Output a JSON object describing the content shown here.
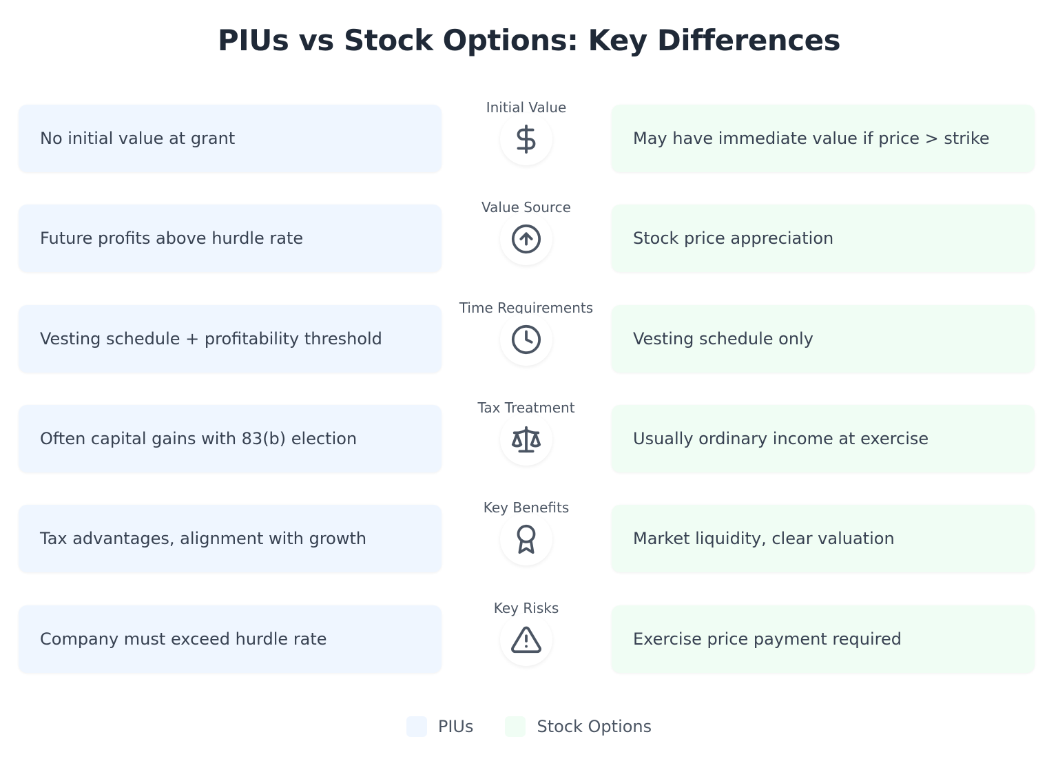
{
  "title": "PIUs vs Stock Options: Key Differences",
  "colors": {
    "pius": "#eff6ff",
    "stock_options": "#f0fdf4",
    "icon": "#4b5563"
  },
  "rows": [
    {
      "label": "Initial Value",
      "icon": "dollar-icon",
      "piu": "No initial value at grant",
      "option": "May have immediate value if price > strike"
    },
    {
      "label": "Value Source",
      "icon": "arrow-up-circle-icon",
      "piu": "Future profits above hurdle rate",
      "option": "Stock price appreciation"
    },
    {
      "label": "Time Requirements",
      "icon": "clock-icon",
      "piu": "Vesting schedule + profitability threshold",
      "option": "Vesting schedule only"
    },
    {
      "label": "Tax Treatment",
      "icon": "scale-icon",
      "piu": "Often capital gains with 83(b) election",
      "option": "Usually ordinary income at exercise"
    },
    {
      "label": "Key Benefits",
      "icon": "award-icon",
      "piu": "Tax advantages, alignment with growth",
      "option": "Market liquidity, clear valuation"
    },
    {
      "label": "Key Risks",
      "icon": "alert-triangle-icon",
      "piu": "Company must exceed hurdle rate",
      "option": "Exercise price payment required"
    }
  ],
  "legend": [
    {
      "label": "PIUs"
    },
    {
      "label": "Stock Options"
    }
  ]
}
